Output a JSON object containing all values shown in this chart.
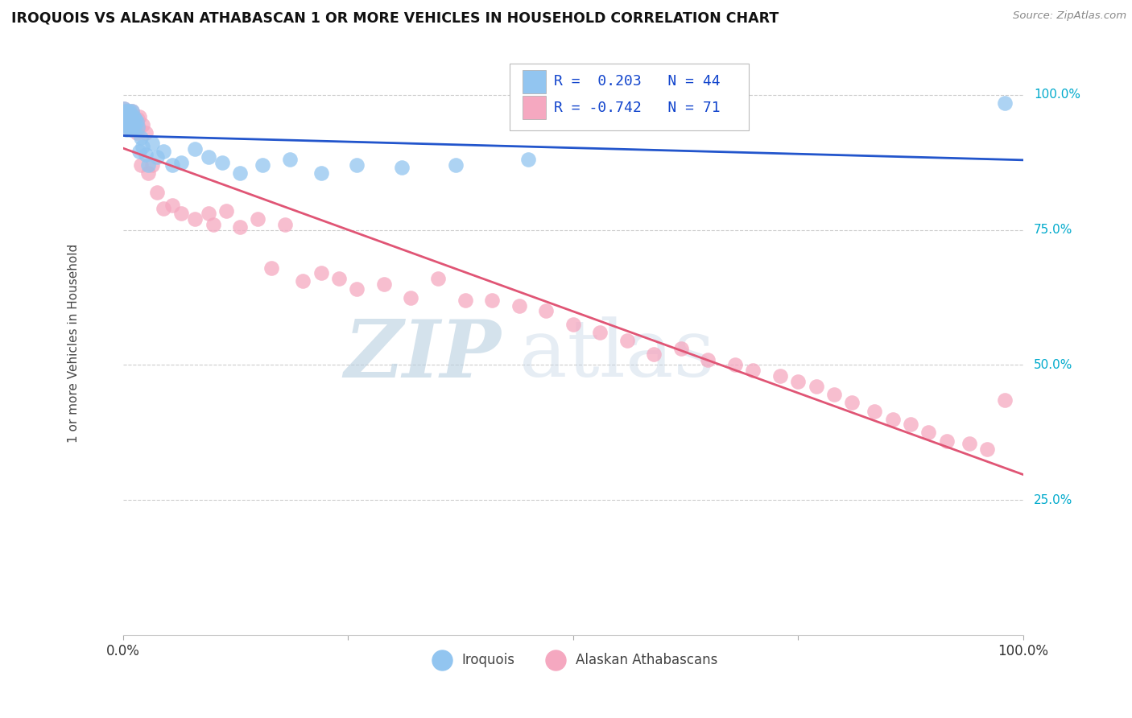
{
  "title": "IROQUOIS VS ALASKAN ATHABASCAN 1 OR MORE VEHICLES IN HOUSEHOLD CORRELATION CHART",
  "source": "Source: ZipAtlas.com",
  "ylabel": "1 or more Vehicles in Household",
  "ytick_labels": [
    "100.0%",
    "75.0%",
    "50.0%",
    "25.0%"
  ],
  "ytick_values": [
    1.0,
    0.75,
    0.5,
    0.25
  ],
  "legend_labels": [
    "Iroquois",
    "Alaskan Athabascans"
  ],
  "iroquois_color": "#92C5F0",
  "athabascan_color": "#F5A8C0",
  "iroquois_line_color": "#2255CC",
  "athabascan_line_color": "#E05575",
  "iroquois_R": 0.203,
  "iroquois_N": 44,
  "athabascan_R": -0.742,
  "athabascan_N": 71,
  "background_color": "#ffffff",
  "iroquois_x": [
    0.001,
    0.002,
    0.003,
    0.003,
    0.004,
    0.004,
    0.005,
    0.005,
    0.006,
    0.006,
    0.007,
    0.007,
    0.008,
    0.009,
    0.01,
    0.01,
    0.011,
    0.012,
    0.013,
    0.014,
    0.015,
    0.016,
    0.018,
    0.02,
    0.022,
    0.025,
    0.028,
    0.032,
    0.038,
    0.045,
    0.055,
    0.065,
    0.08,
    0.095,
    0.11,
    0.13,
    0.155,
    0.185,
    0.22,
    0.26,
    0.31,
    0.37,
    0.45,
    0.98
  ],
  "iroquois_y": [
    0.975,
    0.96,
    0.97,
    0.945,
    0.955,
    0.935,
    0.97,
    0.95,
    0.96,
    0.94,
    0.97,
    0.95,
    0.965,
    0.935,
    0.955,
    0.97,
    0.945,
    0.96,
    0.94,
    0.955,
    0.95,
    0.94,
    0.895,
    0.92,
    0.905,
    0.89,
    0.87,
    0.91,
    0.885,
    0.895,
    0.87,
    0.875,
    0.9,
    0.885,
    0.875,
    0.855,
    0.87,
    0.88,
    0.855,
    0.87,
    0.865,
    0.87,
    0.88,
    0.985
  ],
  "athabascan_x": [
    0.001,
    0.002,
    0.002,
    0.003,
    0.004,
    0.004,
    0.005,
    0.005,
    0.006,
    0.007,
    0.008,
    0.008,
    0.009,
    0.01,
    0.01,
    0.011,
    0.012,
    0.013,
    0.015,
    0.016,
    0.017,
    0.018,
    0.02,
    0.022,
    0.025,
    0.028,
    0.032,
    0.038,
    0.045,
    0.055,
    0.065,
    0.08,
    0.095,
    0.1,
    0.115,
    0.13,
    0.15,
    0.165,
    0.18,
    0.2,
    0.22,
    0.24,
    0.26,
    0.29,
    0.32,
    0.35,
    0.38,
    0.41,
    0.44,
    0.47,
    0.5,
    0.53,
    0.56,
    0.59,
    0.62,
    0.65,
    0.68,
    0.7,
    0.73,
    0.75,
    0.77,
    0.79,
    0.81,
    0.835,
    0.855,
    0.875,
    0.895,
    0.915,
    0.94,
    0.96,
    0.98
  ],
  "athabascan_y": [
    0.975,
    0.96,
    0.94,
    0.97,
    0.945,
    0.96,
    0.97,
    0.95,
    0.965,
    0.94,
    0.96,
    0.945,
    0.935,
    0.97,
    0.95,
    0.94,
    0.96,
    0.945,
    0.93,
    0.955,
    0.94,
    0.96,
    0.87,
    0.945,
    0.93,
    0.855,
    0.87,
    0.82,
    0.79,
    0.795,
    0.78,
    0.77,
    0.78,
    0.76,
    0.785,
    0.755,
    0.77,
    0.68,
    0.76,
    0.655,
    0.67,
    0.66,
    0.64,
    0.65,
    0.625,
    0.66,
    0.62,
    0.62,
    0.61,
    0.6,
    0.575,
    0.56,
    0.545,
    0.52,
    0.53,
    0.51,
    0.5,
    0.49,
    0.48,
    0.47,
    0.46,
    0.445,
    0.43,
    0.415,
    0.4,
    0.39,
    0.375,
    0.36,
    0.355,
    0.345,
    0.435
  ]
}
